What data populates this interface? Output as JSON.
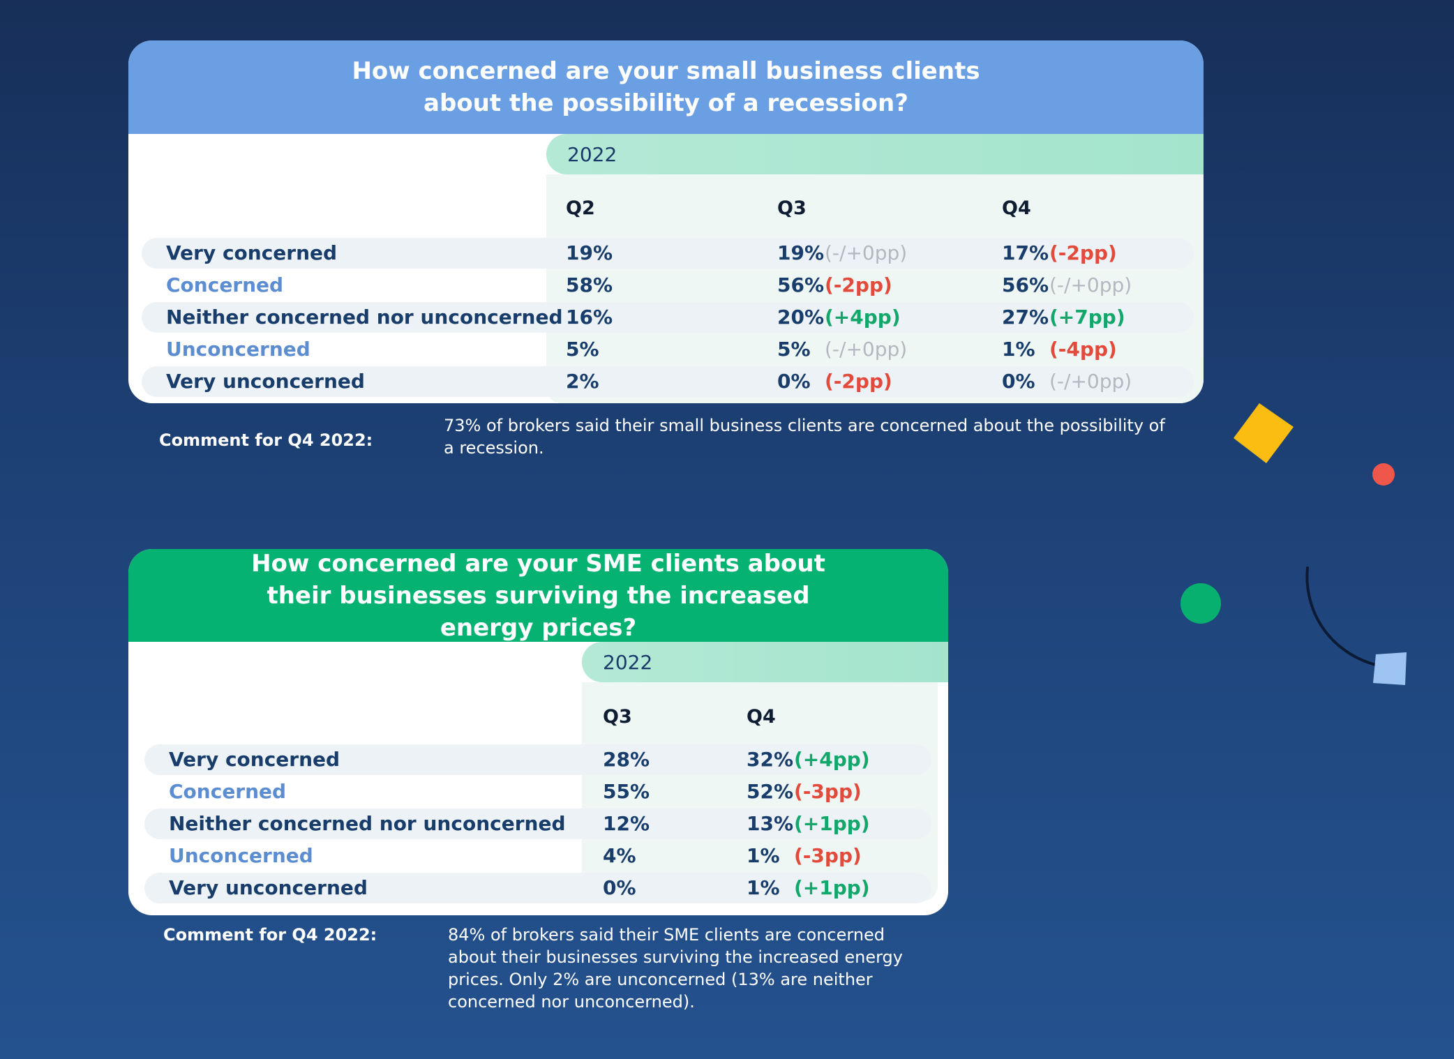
{
  "colors": {
    "header1": "#6b9fe3",
    "header2": "#05b272",
    "dark_label": "#183d6b",
    "light_label": "#5c8dd1",
    "change_down": "#e24a3b",
    "change_up": "#13a76b",
    "change_neutral": "#b3b8c0"
  },
  "chart_data": [
    {
      "type": "table",
      "title": "How concerned are your small business clients about the possibility of a recession?",
      "year": "2022",
      "columns": [
        "Q2",
        "Q3",
        "Q4"
      ],
      "rows": [
        {
          "label": "Very concerned",
          "values": [
            "19%",
            "19%",
            "17%"
          ],
          "changes": [
            "",
            "(-/+0pp)",
            "(-2pp)"
          ],
          "trend": [
            "",
            "neutral",
            "down"
          ]
        },
        {
          "label": "Concerned",
          "values": [
            "58%",
            "56%",
            "56%"
          ],
          "changes": [
            "",
            "(-2pp)",
            "(-/+0pp)"
          ],
          "trend": [
            "",
            "down",
            "neutral"
          ]
        },
        {
          "label": "Neither concerned nor unconcerned",
          "values": [
            "16%",
            "20%",
            "27%"
          ],
          "changes": [
            "",
            "(+4pp)",
            "(+7pp)"
          ],
          "trend": [
            "",
            "up",
            "up"
          ]
        },
        {
          "label": "Unconcerned",
          "values": [
            "5%",
            "5%",
            "1%"
          ],
          "changes": [
            "",
            "(-/+0pp)",
            "(-4pp)"
          ],
          "trend": [
            "",
            "neutral",
            "down"
          ]
        },
        {
          "label": "Very unconcerned",
          "values": [
            "2%",
            "0%",
            "0%"
          ],
          "changes": [
            "",
            "(-2pp)",
            "(-/+0pp)"
          ],
          "trend": [
            "",
            "down",
            "neutral"
          ]
        }
      ],
      "comment_label": "Comment for Q4 2022:",
      "comment": "73% of brokers said their small business clients are concerned about the possibility of a recession."
    },
    {
      "type": "table",
      "title": "How concerned are your SME clients about their businesses surviving the increased energy prices?",
      "year": "2022",
      "columns": [
        "Q3",
        "Q4"
      ],
      "rows": [
        {
          "label": "Very concerned",
          "values": [
            "28%",
            "32%"
          ],
          "changes": [
            "",
            "(+4pp)"
          ],
          "trend": [
            "",
            "up"
          ]
        },
        {
          "label": "Concerned",
          "values": [
            "55%",
            "52%"
          ],
          "changes": [
            "",
            "(-3pp)"
          ],
          "trend": [
            "",
            "down"
          ]
        },
        {
          "label": "Neither concerned nor unconcerned",
          "values": [
            "12%",
            "13%"
          ],
          "changes": [
            "",
            "(+1pp)"
          ],
          "trend": [
            "",
            "up"
          ]
        },
        {
          "label": "Unconcerned",
          "values": [
            "4%",
            "1%"
          ],
          "changes": [
            "",
            "(-3pp)"
          ],
          "trend": [
            "",
            "down"
          ]
        },
        {
          "label": "Very unconcerned",
          "values": [
            "0%",
            "1%"
          ],
          "changes": [
            "",
            "(+1pp)"
          ],
          "trend": [
            "",
            "up"
          ]
        }
      ],
      "comment_label": "Comment for Q4 2022:",
      "comment": "84% of brokers said their SME clients are concerned about their businesses surviving the increased energy prices. Only 2% are unconcerned (13% are neither concerned nor unconcerned)."
    }
  ]
}
